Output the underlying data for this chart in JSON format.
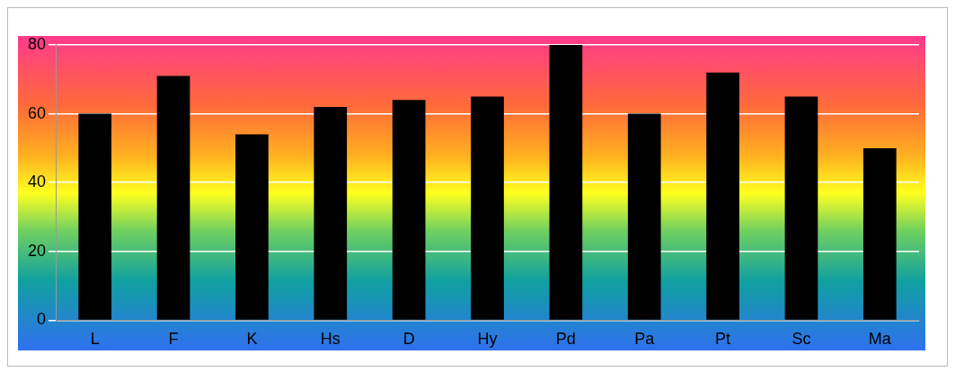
{
  "chart_data": {
    "type": "bar",
    "categories": [
      "L",
      "F",
      "K",
      "Hs",
      "D",
      "Hy",
      "Pd",
      "Pa",
      "Pt",
      "Sc",
      "Ma"
    ],
    "values": [
      60,
      71,
      54,
      62,
      64,
      65,
      80,
      60,
      72,
      65,
      50
    ],
    "color": "#000000",
    "ylim": [
      0,
      80
    ],
    "yticks": [
      0,
      20,
      40,
      60,
      80
    ],
    "grid": "y",
    "legend": false
  }
}
